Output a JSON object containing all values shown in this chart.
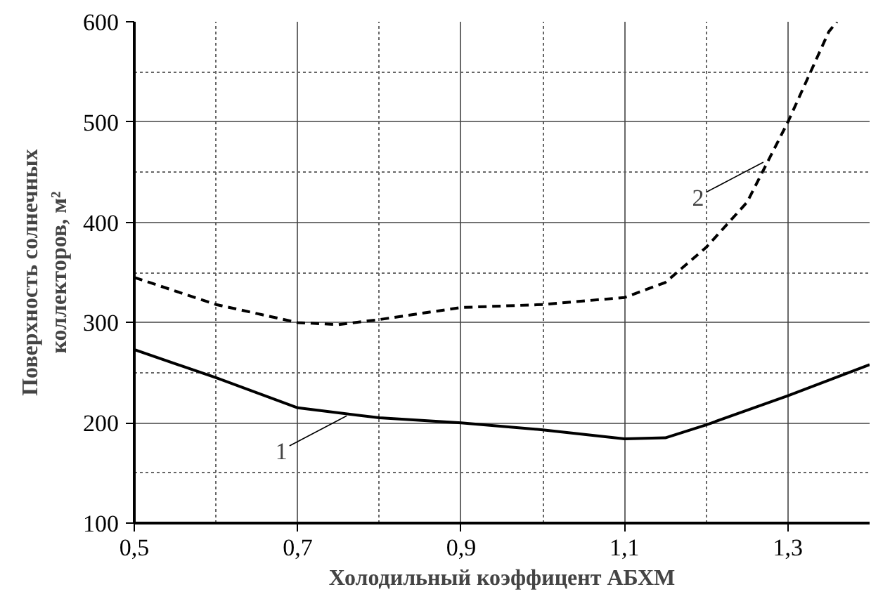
{
  "chart_data": {
    "type": "line",
    "xlabel": "Холодильный коэффицент АБХМ",
    "ylabel": "Поверхность солнечных коллекторов, м²",
    "xlim": [
      0.5,
      1.4
    ],
    "ylim": [
      100,
      600
    ],
    "xticks": [
      {
        "value": 0.5,
        "label": "0,5"
      },
      {
        "value": 0.7,
        "label": "0,7"
      },
      {
        "value": 0.9,
        "label": "0,9"
      },
      {
        "value": 1.1,
        "label": "1,1"
      },
      {
        "value": 1.3,
        "label": "1,3"
      }
    ],
    "yticks": [
      100,
      200,
      300,
      400,
      500,
      600
    ],
    "grid": true,
    "series": [
      {
        "color": "#000000",
        "line_style": "solid",
        "x": [
          0.5,
          0.6,
          0.7,
          0.8,
          0.9,
          1.0,
          1.1,
          1.15,
          1.2,
          1.3,
          1.4
        ],
        "values": [
          273,
          245,
          215,
          205,
          200,
          193,
          184,
          185,
          198,
          227,
          258
        ]
      },
      {
        "color": "#000000",
        "line_style": "dashed",
        "x": [
          0.5,
          0.6,
          0.7,
          0.75,
          0.8,
          0.9,
          1.0,
          1.1,
          1.15,
          1.2,
          1.25,
          1.3,
          1.35,
          1.36
        ],
        "values": [
          345,
          318,
          300,
          298,
          303,
          315,
          318,
          325,
          340,
          375,
          420,
          500,
          590,
          600
        ]
      }
    ],
    "annotations": [
      {
        "text": "1",
        "x": 0.76,
        "y": 207
      },
      {
        "text": "2",
        "x": 1.27,
        "y": 460
      }
    ]
  }
}
